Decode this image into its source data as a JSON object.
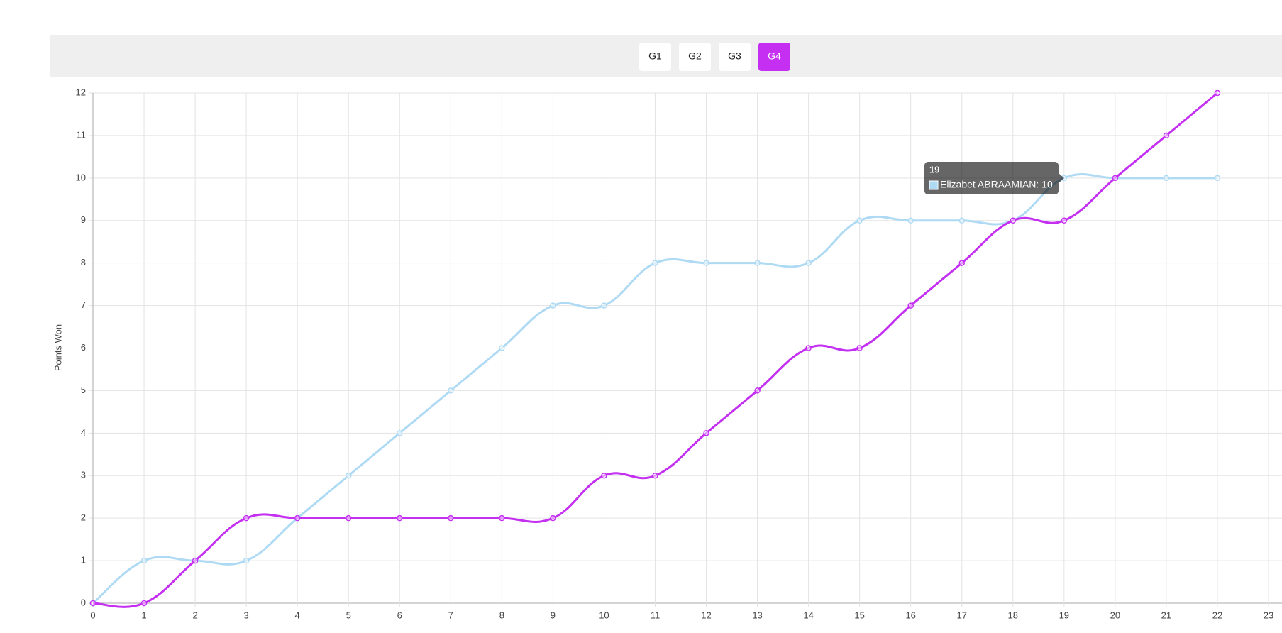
{
  "tabs": [
    "G1",
    "G2",
    "G3",
    "G4"
  ],
  "active_tab": 3,
  "active_color": "#c42ff2",
  "chart_data": {
    "type": "line",
    "y_label": "Points Won",
    "x": [
      0,
      1,
      2,
      3,
      4,
      5,
      6,
      7,
      8,
      9,
      10,
      11,
      12,
      13,
      14,
      15,
      16,
      17,
      18,
      19,
      20,
      21,
      22
    ],
    "series": [
      {
        "color": "#afdaf4",
        "values": [
          0,
          1,
          1,
          1,
          2,
          3,
          4,
          5,
          6,
          7,
          7,
          8,
          8,
          8,
          8,
          9,
          9,
          9,
          9,
          10,
          10,
          10,
          10
        ]
      },
      {
        "color": "#c42ff2",
        "values": [
          0,
          0,
          1,
          2,
          2,
          2,
          2,
          2,
          2,
          2,
          3,
          3,
          4,
          5,
          6,
          6,
          7,
          8,
          9,
          9,
          10,
          11,
          12
        ]
      }
    ],
    "xlim": [
      0,
      23
    ],
    "xticks": [
      0,
      1,
      2,
      3,
      4,
      5,
      6,
      7,
      8,
      9,
      10,
      11,
      12,
      13,
      14,
      15,
      16,
      17,
      18,
      19,
      20,
      21,
      22,
      23
    ],
    "ylim": [
      0,
      12
    ],
    "yticks": [
      0,
      1,
      2,
      3,
      4,
      5,
      6,
      7,
      8,
      9,
      10,
      11,
      12
    ],
    "grid": true,
    "tooltip": {
      "title": "19",
      "label": "Elizabet ABRAAMIAN: 10"
    }
  }
}
